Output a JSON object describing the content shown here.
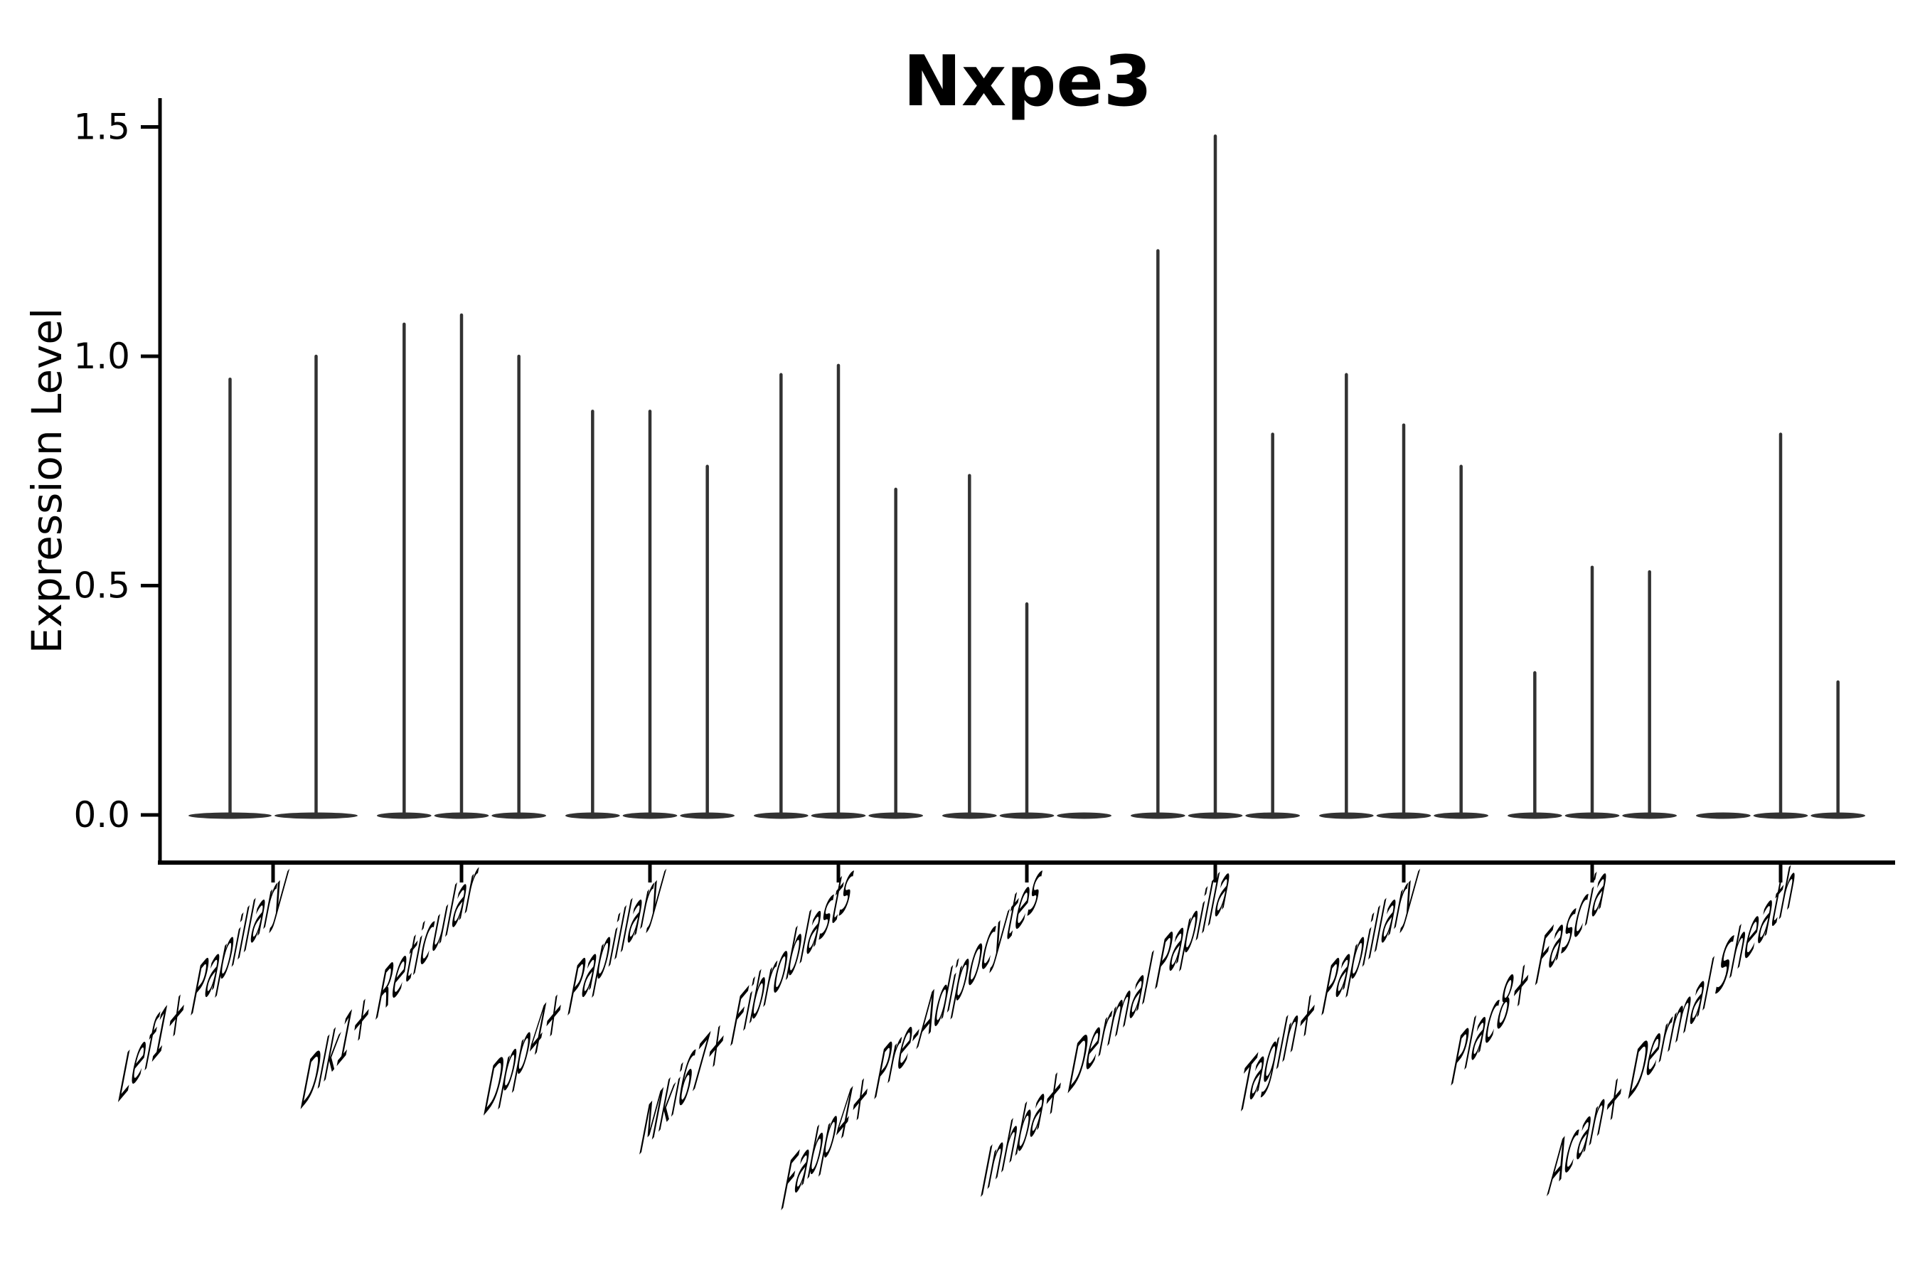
{
  "title": "Nxpe3",
  "chart_data": {
    "type": "violin",
    "title": "Nxpe3",
    "ylabel": "Expression Level",
    "xlabel": "",
    "ytick_labels": [
      "0.0",
      "0.5",
      "1.0",
      "1.5"
    ],
    "ytick_values": [
      0,
      0.5,
      1.0,
      1.5
    ],
    "ylim": [
      -0.08,
      1.56
    ],
    "grid": false,
    "legend": "none",
    "violin_color": "#323232",
    "axis_color": "#000000",
    "categories": [
      "Lef1+ Papillary",
      "Dlk1+ Reticular",
      "Dpp4+ Papillary",
      "Mki67+ Fibroblasts",
      "Fabp4+ Pre-Adipocytes",
      "Inhba+ Dermal Papilla",
      "Tagln+ Papillary",
      "Plac8+ Fascia",
      "Acan+ Dermal Sheath"
    ],
    "series": [
      {
        "category": "Lef1+ Papillary",
        "violin_peaks": [
          0.95,
          1.0
        ]
      },
      {
        "category": "Dlk1+ Reticular",
        "violin_peaks": [
          1.07,
          1.09,
          1.0
        ]
      },
      {
        "category": "Dpp4+ Papillary",
        "violin_peaks": [
          0.88,
          0.88,
          0.76
        ]
      },
      {
        "category": "Mki67+ Fibroblasts",
        "violin_peaks": [
          0.96,
          0.98,
          0.71
        ]
      },
      {
        "category": "Fabp4+ Pre-Adipocytes",
        "violin_peaks": [
          0.74,
          0.46,
          0
        ]
      },
      {
        "category": "Inhba+ Dermal Papilla",
        "violin_peaks": [
          1.23,
          1.48,
          0.83
        ]
      },
      {
        "category": "Tagln+ Papillary",
        "violin_peaks": [
          0.96,
          0.85,
          0.76
        ]
      },
      {
        "category": "Plac8+ Fascia",
        "violin_peaks": [
          0.31,
          0.54,
          0.53
        ]
      },
      {
        "category": "Acan+ Dermal Sheath",
        "violin_peaks": [
          0,
          0.83,
          0.29
        ]
      }
    ],
    "note": "Each category shows 2-3 thin violins; peak = top of expression spike in Expression Level units; 0 = flat violin at baseline (all-zero expression)."
  }
}
